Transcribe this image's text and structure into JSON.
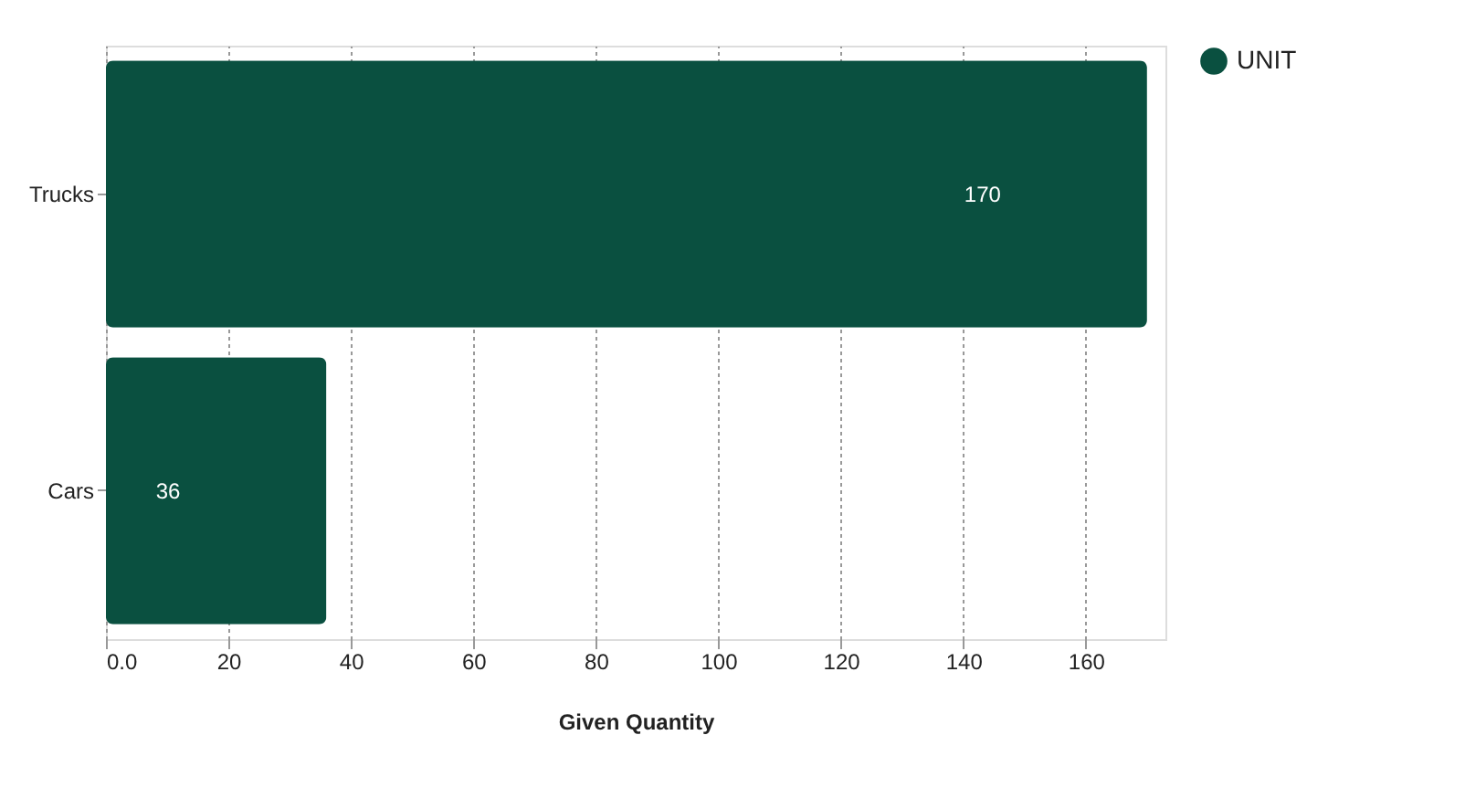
{
  "chart_data": {
    "type": "bar",
    "orientation": "horizontal",
    "xlabel": "Given Quantity",
    "categories": [
      "Trucks",
      "Cars"
    ],
    "series": [
      {
        "name": "UNIT",
        "color": "#0a5040",
        "values": [
          170,
          36
        ]
      }
    ],
    "xlim": [
      0,
      173
    ],
    "xticks": [
      {
        "value": 0,
        "label": "0.0"
      },
      20,
      40,
      60,
      80,
      100,
      120,
      140,
      160
    ],
    "grid": "x",
    "legend": "top right",
    "data_labels": true
  }
}
